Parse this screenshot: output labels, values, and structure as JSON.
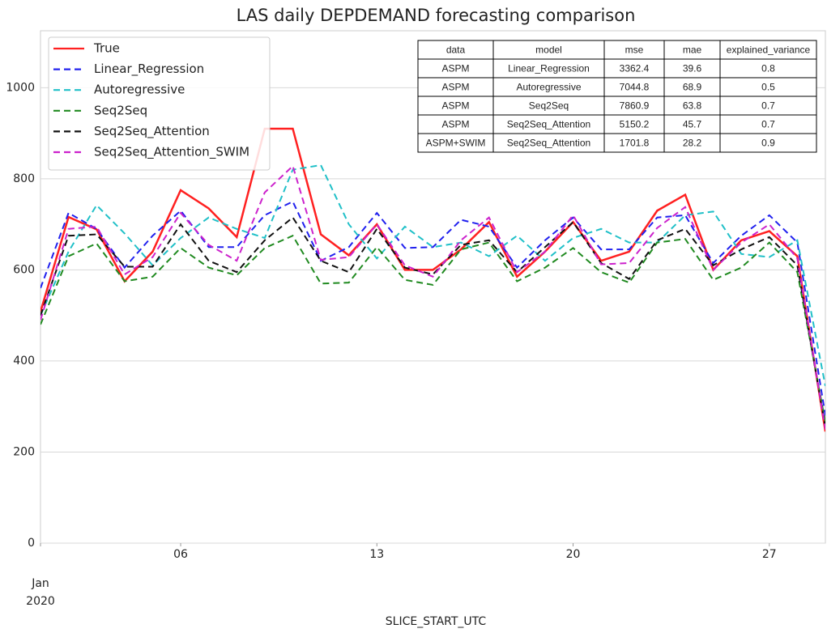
{
  "chart_data": {
    "type": "line",
    "title": "LAS daily DEPDEMAND forecasting comparison",
    "x_label": "SLICE_START_UTC",
    "x": [
      "2020-01-01",
      "2020-01-02",
      "2020-01-03",
      "2020-01-04",
      "2020-01-05",
      "2020-01-06",
      "2020-01-07",
      "2020-01-08",
      "2020-01-09",
      "2020-01-10",
      "2020-01-11",
      "2020-01-12",
      "2020-01-13",
      "2020-01-14",
      "2020-01-15",
      "2020-01-16",
      "2020-01-17",
      "2020-01-18",
      "2020-01-19",
      "2020-01-20",
      "2020-01-21",
      "2020-01-22",
      "2020-01-23",
      "2020-01-24",
      "2020-01-25",
      "2020-01-26",
      "2020-01-27",
      "2020-01-28",
      "2020-01-29"
    ],
    "xlim": [
      "2020-01-01",
      "2020-01-29"
    ],
    "xticks": [
      {
        "value": "2020-01-01",
        "label": "Jan\n2020"
      },
      {
        "value": "2020-01-06",
        "label": "06"
      },
      {
        "value": "2020-01-13",
        "label": "13"
      },
      {
        "value": "2020-01-20",
        "label": "20"
      },
      {
        "value": "2020-01-27",
        "label": "27"
      }
    ],
    "ylim": [
      0,
      1125
    ],
    "yticks": [
      0,
      200,
      400,
      600,
      800,
      1000
    ],
    "grid": true,
    "legend": "upper left",
    "series": [
      {
        "name": "True",
        "color": "#ff2020",
        "dash": false,
        "values": [
          508,
          716,
          689,
          575,
          640,
          775,
          735,
          672,
          910,
          910,
          678,
          632,
          700,
          600,
          600,
          645,
          705,
          585,
          640,
          705,
          620,
          640,
          730,
          765,
          600,
          665,
          685,
          630,
          245
        ]
      },
      {
        "name": "Linear_Regression",
        "color": "#2020ee",
        "dash": true,
        "values": [
          560,
          725,
          690,
          605,
          675,
          730,
          650,
          650,
          720,
          750,
          620,
          650,
          725,
          648,
          650,
          710,
          695,
          605,
          665,
          715,
          645,
          645,
          715,
          720,
          615,
          675,
          720,
          660,
          280
        ]
      },
      {
        "name": "Autoregressive",
        "color": "#20c0c8",
        "dash": true,
        "values": [
          500,
          640,
          742,
          680,
          610,
          670,
          715,
          690,
          670,
          820,
          830,
          700,
          625,
          695,
          650,
          660,
          630,
          675,
          620,
          670,
          690,
          660,
          660,
          720,
          728,
          635,
          628,
          665,
          345
        ]
      },
      {
        "name": "Seq2Seq",
        "color": "#208a20",
        "dash": true,
        "values": [
          480,
          630,
          658,
          575,
          585,
          648,
          605,
          588,
          648,
          675,
          570,
          572,
          650,
          578,
          567,
          645,
          660,
          575,
          605,
          648,
          595,
          572,
          660,
          668,
          578,
          605,
          660,
          595,
          265
        ]
      },
      {
        "name": "Seq2Seq_Attention",
        "color": "#111111",
        "dash": true,
        "values": [
          500,
          675,
          678,
          607,
          607,
          700,
          620,
          595,
          665,
          715,
          620,
          595,
          690,
          605,
          590,
          655,
          665,
          595,
          650,
          705,
          615,
          580,
          665,
          690,
          610,
          645,
          672,
          610,
          255
        ]
      },
      {
        "name": "Seq2Seq_Attention_SWIM",
        "color": "#cc22cc",
        "dash": true,
        "values": [
          490,
          690,
          695,
          590,
          628,
          725,
          655,
          620,
          770,
          828,
          622,
          628,
          700,
          610,
          585,
          665,
          715,
          595,
          640,
          720,
          612,
          615,
          692,
          738,
          600,
          660,
          700,
          625,
          250
        ]
      }
    ],
    "table": {
      "columns": [
        "data",
        "model",
        "mse",
        "mae",
        "explained_variance"
      ],
      "rows": [
        [
          "ASPM",
          "Linear_Regression",
          3362.4,
          39.6,
          0.8
        ],
        [
          "ASPM",
          "Autoregressive",
          7044.8,
          68.9,
          0.5
        ],
        [
          "ASPM",
          "Seq2Seq",
          7860.9,
          63.8,
          0.7
        ],
        [
          "ASPM",
          "Seq2Seq_Attention",
          5150.2,
          45.7,
          0.7
        ],
        [
          "ASPM+SWIM",
          "Seq2Seq_Attention",
          1701.8,
          28.2,
          0.9
        ]
      ]
    }
  }
}
